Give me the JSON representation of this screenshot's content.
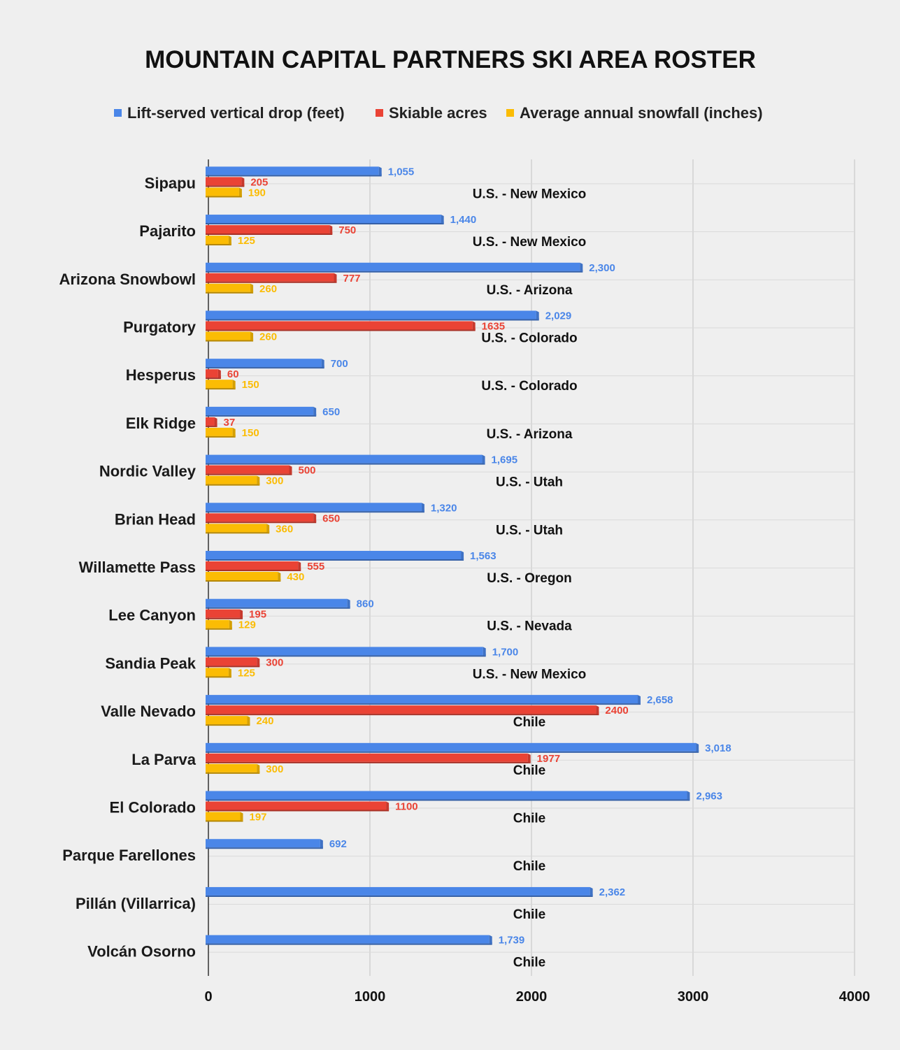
{
  "chart_data": {
    "type": "bar",
    "orientation": "horizontal",
    "title": "MOUNTAIN CAPITAL PARTNERS SKI AREA ROSTER",
    "legend_position": "top",
    "grid": true,
    "xlim": [
      0,
      4000
    ],
    "x_ticks": [
      "0",
      "1000",
      "2000",
      "3000",
      "4000"
    ],
    "categories": [
      "Sipapu",
      "Pajarito",
      "Arizona Snowbowl",
      "Purgatory",
      "Hesperus",
      "Elk Ridge",
      "Nordic Valley",
      "Brian Head",
      "Willamette Pass",
      "Lee Canyon",
      "Sandia Peak",
      "Valle Nevado",
      "La Parva",
      "El Colorado",
      "Parque Farellones",
      "Pillán (Villarrica)",
      "Volcán Osorno"
    ],
    "regions": [
      "U.S. - New Mexico",
      "U.S. - New Mexico",
      "U.S. - Arizona",
      "U.S. - Colorado",
      "U.S. - Colorado",
      "U.S. - Arizona",
      "U.S. - Utah",
      "U.S. - Utah",
      "U.S. - Oregon",
      "U.S. - Nevada",
      "U.S. - New Mexico",
      "Chile",
      "Chile",
      "Chile",
      "Chile",
      "Chile",
      "Chile"
    ],
    "series": [
      {
        "name": "Lift-served vertical drop (feet)",
        "color": "#4a86e8",
        "values": [
          1055,
          1440,
          2300,
          2029,
          700,
          650,
          1695,
          1320,
          1563,
          860,
          1700,
          2658,
          3018,
          2963,
          692,
          2362,
          1739
        ],
        "labels": [
          "1,055",
          "1,440",
          "2,300",
          "2,029",
          "700",
          "650",
          "1,695",
          "1,320",
          "1,563",
          "860",
          "1,700",
          "2,658",
          "3,018",
          "2,963",
          "692",
          "2,362",
          "1,739"
        ]
      },
      {
        "name": "Skiable acres",
        "color": "#ea4335",
        "values": [
          205,
          750,
          777,
          1635,
          60,
          37,
          500,
          650,
          555,
          195,
          300,
          2400,
          1977,
          1100,
          null,
          null,
          null
        ],
        "labels": [
          "205",
          "750",
          "777",
          "1635",
          "60",
          "37",
          "500",
          "650",
          "555",
          "195",
          "300",
          "2400",
          "1977",
          "1100",
          null,
          null,
          null
        ]
      },
      {
        "name": "Average annual snowfall (inches)",
        "color": "#fbbc04",
        "values": [
          190,
          125,
          260,
          260,
          150,
          150,
          300,
          360,
          430,
          129,
          125,
          240,
          300,
          197,
          null,
          null,
          null
        ],
        "labels": [
          "190",
          "125",
          "260",
          "260",
          "150",
          "150",
          "300",
          "360",
          "430",
          "129",
          "125",
          "240",
          "300",
          "197",
          null,
          null,
          null
        ]
      }
    ]
  }
}
